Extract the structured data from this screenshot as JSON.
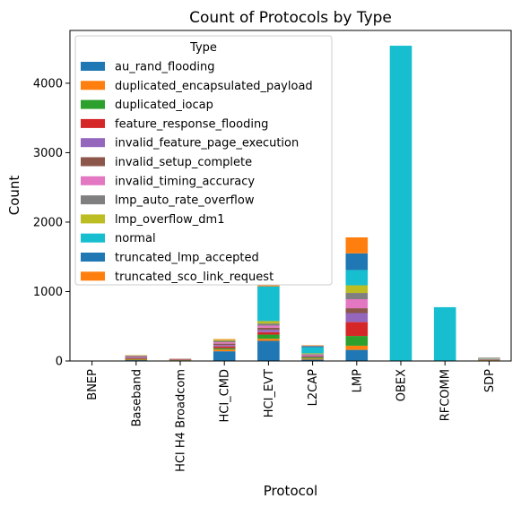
{
  "chart_data": {
    "type": "bar",
    "stacked": true,
    "title": "Count of Protocols by Type",
    "xlabel": "Protocol",
    "ylabel": "Count",
    "ylim": [
      0,
      4760
    ],
    "yticks": [
      0,
      1000,
      2000,
      3000,
      4000
    ],
    "grid": false,
    "legend_title": "Type",
    "legend_position": "top-left",
    "categories": [
      "BNEP",
      "Baseband",
      "HCI H4 Broadcom",
      "HCI_CMD",
      "HCI_EVT",
      "L2CAP",
      "LMP",
      "OBEX",
      "RFCOMM",
      "SDP"
    ],
    "series": [
      {
        "name": "au_rand_flooding",
        "color": "#1f77b4",
        "values": [
          0,
          12,
          5,
          140,
          290,
          20,
          160,
          0,
          0,
          8
        ]
      },
      {
        "name": "duplicated_encapsulated_payload",
        "color": "#ff7f0e",
        "values": [
          0,
          8,
          4,
          25,
          30,
          15,
          60,
          0,
          0,
          4
        ]
      },
      {
        "name": "duplicated_iocap",
        "color": "#2ca02c",
        "values": [
          0,
          10,
          3,
          20,
          60,
          18,
          140,
          0,
          0,
          5
        ]
      },
      {
        "name": "feature_response_flooding",
        "color": "#d62728",
        "values": [
          0,
          10,
          6,
          25,
          35,
          8,
          200,
          0,
          0,
          4
        ]
      },
      {
        "name": "invalid_feature_page_execution",
        "color": "#9467bd",
        "values": [
          0,
          10,
          4,
          20,
          35,
          10,
          130,
          0,
          0,
          3
        ]
      },
      {
        "name": "invalid_setup_complete",
        "color": "#8c564b",
        "values": [
          0,
          12,
          5,
          20,
          30,
          10,
          70,
          0,
          0,
          3
        ]
      },
      {
        "name": "invalid_timing_accuracy",
        "color": "#e377c2",
        "values": [
          0,
          8,
          3,
          20,
          30,
          10,
          130,
          0,
          0,
          3
        ]
      },
      {
        "name": "lmp_auto_rate_overflow",
        "color": "#7f7f7f",
        "values": [
          0,
          8,
          3,
          20,
          30,
          10,
          90,
          0,
          0,
          3
        ]
      },
      {
        "name": "lmp_overflow_dm1",
        "color": "#bcbd22",
        "values": [
          0,
          6,
          2,
          15,
          35,
          10,
          110,
          0,
          0,
          3
        ]
      },
      {
        "name": "normal",
        "color": "#17becf",
        "values": [
          2,
          0,
          0,
          0,
          500,
          85,
          220,
          4540,
          775,
          5
        ]
      },
      {
        "name": "truncated_lmp_accepted",
        "color": "#1f77b4",
        "values": [
          0,
          0,
          0,
          0,
          0,
          20,
          240,
          0,
          0,
          4
        ]
      },
      {
        "name": "truncated_sco_link_request",
        "color": "#ff7f0e",
        "values": [
          0,
          0,
          0,
          10,
          20,
          10,
          230,
          0,
          0,
          4
        ]
      }
    ]
  }
}
